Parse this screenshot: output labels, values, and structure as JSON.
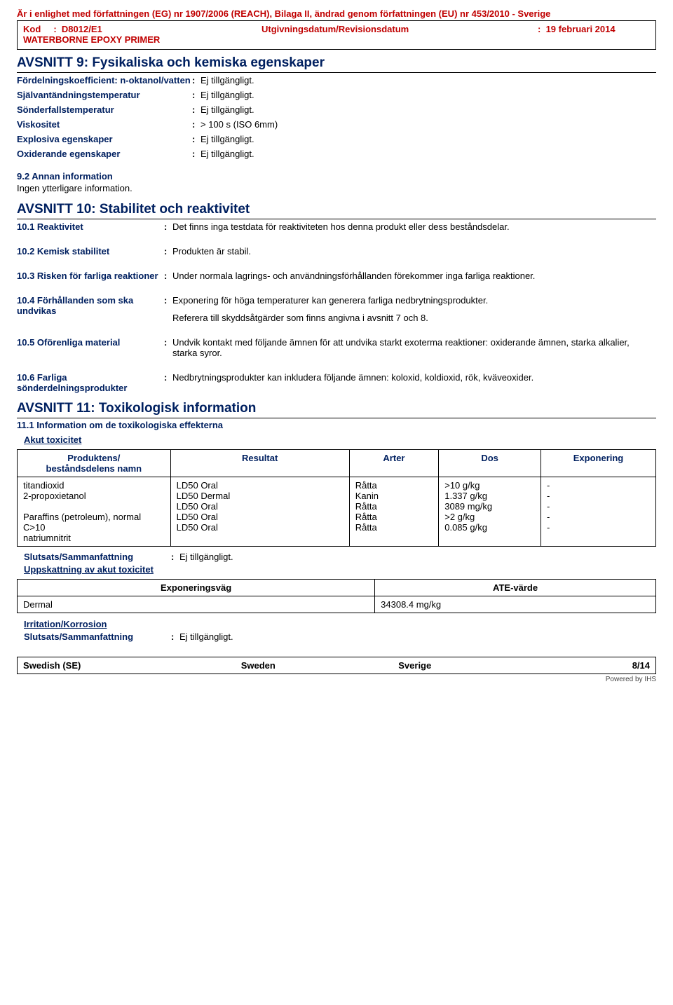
{
  "header": {
    "compliance": "Är i enlighet med författningen (EG) nr 1907/2006 (REACH), Bilaga II, ändrad genom författningen (EU) nr 453/2010 - Sverige",
    "kod_label": "Kod",
    "kod_value": "D8012/E1",
    "date_label": "Utgivningsdatum/Revisionsdatum",
    "date_value": "19 februari 2014",
    "product": "WATERBORNE EPOXY PRIMER"
  },
  "s9": {
    "title": "AVSNITT 9: Fysikaliska och kemiska egenskaper",
    "rows": [
      {
        "label": "Fördelningskoefficient: n-oktanol/vatten",
        "val": "Ej tillgängligt."
      },
      {
        "label": "Självantändningstemperatur",
        "val": "Ej tillgängligt."
      },
      {
        "label": "Sönderfallstemperatur",
        "val": "Ej tillgängligt."
      },
      {
        "label": "Viskositet",
        "val": "> 100 s (ISO 6mm)"
      },
      {
        "label": "Explosiva egenskaper",
        "val": "Ej tillgängligt."
      },
      {
        "label": "Oxiderande egenskaper",
        "val": "Ej tillgängligt."
      }
    ],
    "sub92": "9.2 Annan information",
    "sub92_body": "Ingen ytterligare information."
  },
  "s10": {
    "title": "AVSNITT 10: Stabilitet och reaktivitet",
    "r1_label": "10.1 Reaktivitet",
    "r1_val": "Det finns inga testdata för reaktiviteten hos denna produkt eller dess beståndsdelar.",
    "r2_label": "10.2 Kemisk stabilitet",
    "r2_val": "Produkten är stabil.",
    "r3_label": "10.3 Risken för farliga reaktioner",
    "r3_val": "Under normala lagrings- och användningsförhållanden förekommer inga farliga reaktioner.",
    "r4_label": "10.4 Förhållanden som ska undvikas",
    "r4_val": "Exponering för höga temperaturer kan generera farliga nedbrytningsprodukter.",
    "r4_val2": "Referera till skyddsåtgärder som finns angivna i avsnitt 7 och 8.",
    "r5_label": "10.5 Oförenliga material",
    "r5_val": "Undvik kontakt med följande ämnen för att undvika starkt exoterma reaktioner: oxiderande ämnen, starka alkalier, starka syror.",
    "r6_label": "10.6 Farliga sönderdelningsprodukter",
    "r6_val": "Nedbrytningsprodukter kan inkludera följande ämnen: koloxid, koldioxid, rök, kväveoxider."
  },
  "s11": {
    "title": "AVSNITT 11: Toxikologisk information",
    "h111": "11.1 Information om de toxikologiska effekterna",
    "acute": "Akut toxicitet",
    "tox_headers": [
      "Produktens/\nbeståndsdelens namn",
      "Resultat",
      "Arter",
      "Dos",
      "Exponering"
    ],
    "tox_rows": [
      [
        "titandioxid",
        "LD50 Oral",
        "Råtta",
        ">10 g/kg",
        "-"
      ],
      [
        "2-propoxietanol",
        "LD50 Dermal",
        "Kanin",
        "1.337 g/kg",
        "-"
      ],
      [
        "",
        "LD50 Oral",
        "Råtta",
        "3089 mg/kg",
        "-"
      ],
      [
        "Paraffins (petroleum), normal C>10",
        "LD50 Oral",
        "Råtta",
        ">2 g/kg",
        "-"
      ],
      [
        "natriumnitrit",
        "LD50 Oral",
        "Råtta",
        "0.085 g/kg",
        "-"
      ]
    ],
    "slutsats_label": "Slutsats/Sammanfattning",
    "slutsats_val": "Ej tillgängligt.",
    "uppsk": "Uppskattning av akut toxicitet",
    "ate_h1": "Exponeringsväg",
    "ate_h2": "ATE-värde",
    "ate_r1": "Dermal",
    "ate_r2": "34308.4 mg/kg",
    "irrit": "Irritation/Korrosion"
  },
  "footer": {
    "a": "Swedish (SE)",
    "b": "Sweden",
    "c": "Sverige",
    "d": "8/14",
    "powered": "Powered by IHS"
  },
  "colors": {
    "header_red": "#c00000",
    "label_blue": "#002060"
  }
}
